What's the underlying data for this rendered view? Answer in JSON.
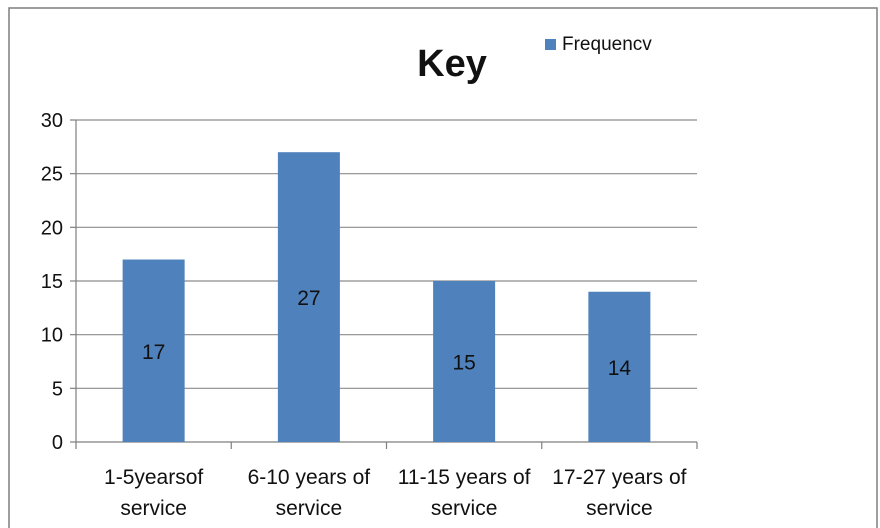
{
  "chart_data": {
    "type": "bar",
    "title": "Key",
    "categories": [
      [
        "1-5yearsof",
        "service"
      ],
      [
        "6-10 years of",
        "service"
      ],
      [
        "11-15 years of",
        "service"
      ],
      [
        "17-27 years of",
        "service"
      ]
    ],
    "series": [
      {
        "name": "Frequencv",
        "values": [
          17,
          27,
          15,
          14
        ],
        "color": "#4f81bd"
      }
    ],
    "data_labels": [
      "17",
      "27",
      "15",
      "14"
    ],
    "y_ticks": [
      "0",
      "5",
      "10",
      "15",
      "20",
      "25",
      "30"
    ],
    "ylim": [
      0,
      30
    ],
    "grid": true,
    "legend_position": "top-right",
    "colors": {
      "bar": "#4f81bd",
      "grid": "#8c8c8c",
      "frame": "#7f7f7f",
      "text": "#111111"
    }
  }
}
